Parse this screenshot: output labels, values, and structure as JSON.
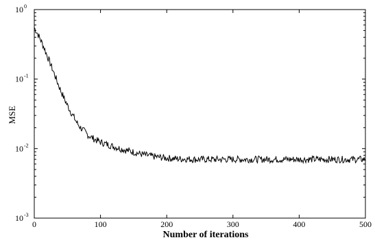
{
  "chart_data": {
    "type": "line",
    "title": "",
    "xlabel": "Number  of  iterations",
    "ylabel": "MSE",
    "x_scale": "linear",
    "y_scale": "log",
    "xlim": [
      0,
      500
    ],
    "ylim": [
      0.001,
      1
    ],
    "x_ticks": [
      0,
      100,
      200,
      300,
      400,
      500
    ],
    "y_ticks": [
      {
        "value": 1,
        "base": "10",
        "exp": "0"
      },
      {
        "value": 0.1,
        "base": "10",
        "exp": "-1"
      },
      {
        "value": 0.01,
        "base": "10",
        "exp": "-2"
      },
      {
        "value": 0.001,
        "base": "10",
        "exp": "-3"
      }
    ],
    "grid": false,
    "color": "#000000",
    "series": [
      {
        "x": [
          0,
          5,
          10,
          15,
          20,
          25,
          30,
          35,
          40,
          45,
          50,
          55,
          60,
          65,
          70,
          75,
          80,
          85,
          90,
          95,
          100,
          110,
          120,
          130,
          140,
          150,
          160,
          170,
          180,
          190,
          200,
          210,
          220,
          230,
          240,
          250,
          260,
          270,
          280,
          290,
          300,
          320,
          340,
          360,
          380,
          400,
          420,
          440,
          460,
          480,
          500
        ],
        "values": [
          0.55,
          0.45,
          0.36,
          0.28,
          0.21,
          0.16,
          0.12,
          0.09,
          0.068,
          0.053,
          0.042,
          0.034,
          0.028,
          0.023,
          0.02,
          0.018,
          0.016,
          0.0148,
          0.0138,
          0.013,
          0.0124,
          0.0115,
          0.0107,
          0.01,
          0.0094,
          0.0089,
          0.0084,
          0.008,
          0.0077,
          0.0075,
          0.0073,
          0.0072,
          0.0071,
          0.0071,
          0.007,
          0.007,
          0.007,
          0.007,
          0.007,
          0.007,
          0.007,
          0.007,
          0.007,
          0.007,
          0.007,
          0.007,
          0.007,
          0.007,
          0.007,
          0.007,
          0.007
        ]
      }
    ]
  }
}
